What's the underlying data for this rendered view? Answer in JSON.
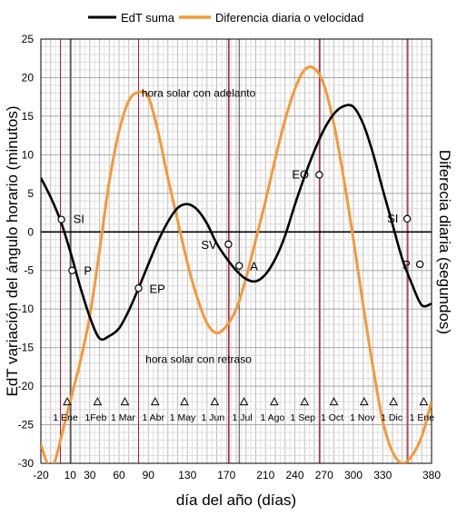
{
  "chart_data": {
    "type": "line",
    "xlabel": "día del año (días)",
    "ylabel_left": "EdT variación del ángulo horario (minutos)",
    "ylabel_right": "Diferecia diaria (segundos)",
    "xlim": [
      -20,
      380
    ],
    "ylim": [
      -30,
      25
    ],
    "x_ticks": [
      -20,
      0,
      30,
      60,
      90,
      120,
      150,
      180,
      210,
      240,
      270,
      300,
      330,
      360,
      380
    ],
    "x_tick_labels": [
      "-20",
      "10",
      "30",
      "60",
      "90",
      "130",
      "170",
      "210",
      "240",
      "270",
      "300",
      "330",
      "380"
    ],
    "x_tick_label_positions": [
      -20,
      10,
      30,
      60,
      90,
      130,
      170,
      210,
      240,
      270,
      300,
      330,
      380
    ],
    "y_ticks": [
      -30,
      -25,
      -20,
      -15,
      -10,
      -5,
      0,
      5,
      10,
      15,
      20,
      25
    ],
    "y_tick_labels": [
      "-30",
      "-25",
      "-20",
      "-15",
      "-10",
      "-5",
      "0",
      "5",
      "10",
      "15",
      "20",
      "25"
    ],
    "grid": true,
    "legend_position": "top",
    "series": [
      {
        "name": "EdT suma",
        "color": "#000000",
        "x": [
          -20,
          -10,
          0,
          10,
          20,
          30,
          40,
          50,
          60,
          70,
          80,
          90,
          100,
          110,
          120,
          130,
          140,
          150,
          160,
          170,
          180,
          190,
          200,
          210,
          220,
          230,
          240,
          250,
          260,
          270,
          280,
          290,
          300,
          310,
          320,
          330,
          340,
          350,
          360,
          370,
          380
        ],
        "y": [
          7,
          4.5,
          1.5,
          -2.5,
          -7,
          -11,
          -13.8,
          -13.5,
          -12.5,
          -10.2,
          -7.3,
          -4.2,
          -1.2,
          1.3,
          3.1,
          3.6,
          2.9,
          1.1,
          -1.5,
          -3.4,
          -5,
          -6.1,
          -6.4,
          -5.5,
          -3.5,
          -0.5,
          3.5,
          7.2,
          10.5,
          13.3,
          15.3,
          16.3,
          16.2,
          14,
          10.2,
          5.5,
          1,
          -3.5,
          -6.8,
          -9.5,
          -9.3
        ]
      },
      {
        "name": "Diferencia diaria o velocidad",
        "color": "#f4993b",
        "x": [
          -20,
          -15,
          -10,
          -5,
          0,
          5,
          10,
          15,
          20,
          30,
          40,
          50,
          60,
          70,
          80,
          90,
          100,
          110,
          120,
          130,
          140,
          150,
          160,
          170,
          180,
          190,
          200,
          210,
          220,
          230,
          240,
          250,
          260,
          270,
          280,
          290,
          300,
          310,
          320,
          330,
          340,
          350,
          360,
          370,
          380
        ],
        "y": [
          -27.5,
          -29.5,
          -30.5,
          -29.5,
          -27,
          -24.5,
          -22,
          -19.5,
          -17,
          -11,
          -2.5,
          6.5,
          13,
          17,
          18.1,
          17.5,
          13,
          7,
          1.5,
          -4,
          -8.5,
          -11.8,
          -13.1,
          -12.2,
          -10,
          -6,
          -1,
          4,
          9.5,
          14.5,
          18.5,
          21,
          21.2,
          19,
          14,
          7,
          -1,
          -9.5,
          -17.5,
          -24.5,
          -28.5,
          -30,
          -29,
          -26.5,
          -22
        ]
      }
    ],
    "vertical_lines": {
      "black": [
        10,
        183
      ],
      "red": [
        0,
        80,
        172,
        265,
        355
      ],
      "gray": [
        11,
        173,
        266,
        356
      ]
    },
    "event_points": [
      {
        "label": "SI",
        "x": 1,
        "y": 1.6
      },
      {
        "label": "P",
        "x": 12,
        "y": -5
      },
      {
        "label": "EP",
        "x": 80,
        "y": -7.3
      },
      {
        "label": "SV",
        "x": 172,
        "y": -1.6
      },
      {
        "label": "A",
        "x": 183,
        "y": -4.4
      },
      {
        "label": "EO",
        "x": 265,
        "y": 7.4
      },
      {
        "label": "SI",
        "x": 355,
        "y": 1.7
      },
      {
        "label": "P",
        "x": 368,
        "y": -4.2
      }
    ],
    "annotations": [
      {
        "text": "hora solar con adelanto",
        "x": 134,
        "y": 18
      },
      {
        "text": "hora solar con retraso",
        "x": 134,
        "y": -16.5
      }
    ],
    "month_markers": {
      "y": -22,
      "labels": [
        "1 Ene",
        "1Feb",
        "1 Mar",
        "1 Abr",
        "1 May",
        "1 Jun",
        "1 Jul",
        "1 Ago",
        "1 Sep",
        "1 Oct",
        "1 Nov",
        "1 Dic",
        "1 Ene"
      ],
      "days": [
        0,
        31,
        59,
        90,
        120,
        151,
        181,
        212,
        243,
        273,
        304,
        334,
        365
      ]
    }
  }
}
